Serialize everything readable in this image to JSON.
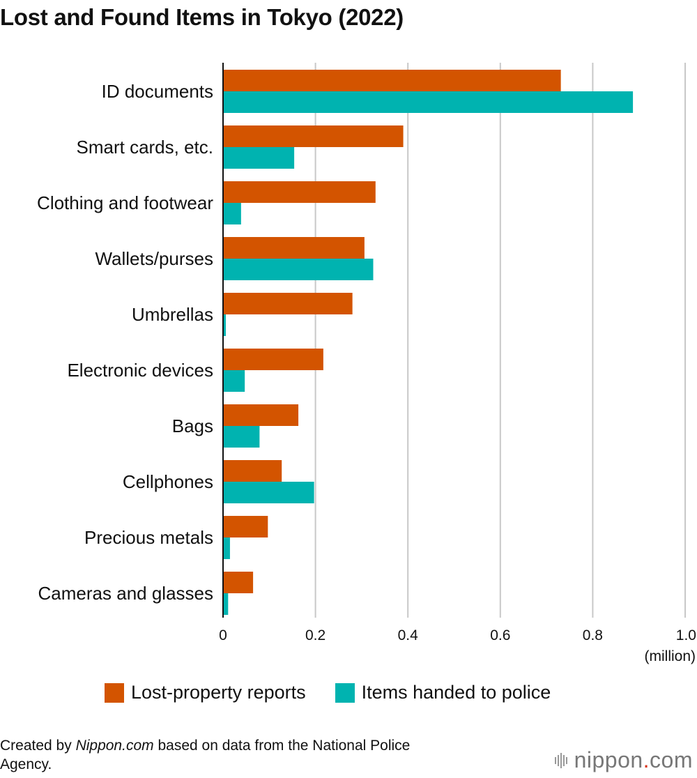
{
  "chart_data": {
    "type": "bar",
    "orientation": "horizontal",
    "title": "Lost and Found Items in Tokyo (2022)",
    "categories": [
      "ID documents",
      "Smart cards, etc.",
      "Clothing and footwear",
      "Wallets/purses",
      "Umbrellas",
      "Electronic devices",
      "Bags",
      "Cellphones",
      "Precious metals",
      "Cameras and glasses"
    ],
    "series": [
      {
        "name": "Lost-property reports",
        "color": "#d35400",
        "values": [
          0.731,
          0.39,
          0.33,
          0.306,
          0.28,
          0.217,
          0.163,
          0.127,
          0.097,
          0.065
        ]
      },
      {
        "name": "Items handed to police",
        "color": "#00b3b0",
        "values": [
          0.887,
          0.154,
          0.039,
          0.325,
          0.006,
          0.047,
          0.079,
          0.197,
          0.015,
          0.011
        ]
      }
    ],
    "xlim": [
      0,
      1.0
    ],
    "ticks": [
      {
        "value": 0,
        "label": "0"
      },
      {
        "value": 0.2,
        "label": "0.2"
      },
      {
        "value": 0.4,
        "label": "0.4"
      },
      {
        "value": 0.6,
        "label": "0.6"
      },
      {
        "value": 0.8,
        "label": "0.8"
      },
      {
        "value": 1.0,
        "label": "1.0"
      }
    ],
    "xlabel": "(million)",
    "grid": true,
    "legend_position": "bottom"
  },
  "source": {
    "prefix": "Created by ",
    "site": "Nippon.com",
    "suffix": " based on data from the National Police Agency."
  },
  "brand": {
    "name_left": "nippon",
    "dot": ".",
    "name_right": "com"
  }
}
